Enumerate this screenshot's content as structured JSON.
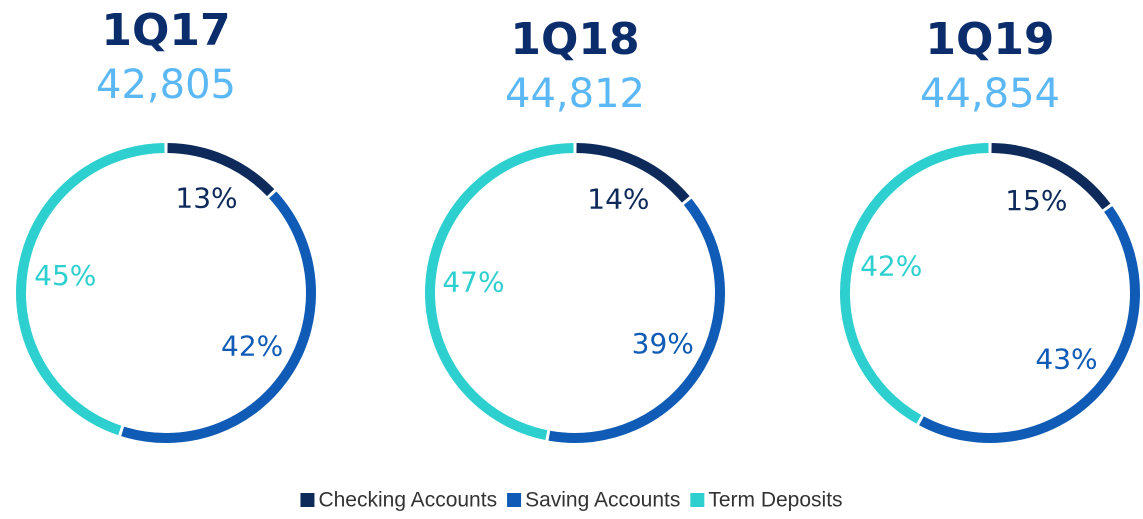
{
  "legend": {
    "labels": [
      "Checking Accounts",
      "Saving Accounts",
      "Term Deposits"
    ],
    "colors": [
      "#0d2a5a",
      "#0f5bb5",
      "#2ecfcf"
    ]
  },
  "chart_data": [
    {
      "type": "pie",
      "donut": true,
      "title": "1Q17",
      "subtitle": "42,805",
      "values": [
        13,
        42,
        45
      ],
      "value_labels": [
        "13%",
        "42%",
        "45%"
      ],
      "label_colors": [
        "#0d2a5a",
        "#0f5bb5",
        "#2ecfcf"
      ]
    },
    {
      "type": "pie",
      "donut": true,
      "title": "1Q18",
      "subtitle": "44,812",
      "values": [
        14,
        39,
        47
      ],
      "value_labels": [
        "14%",
        "39%",
        "47%"
      ],
      "label_colors": [
        "#0d2a5a",
        "#0f5bb5",
        "#2ecfcf"
      ]
    },
    {
      "type": "pie",
      "donut": true,
      "title": "1Q19",
      "subtitle": "44,854",
      "values": [
        15,
        43,
        42
      ],
      "value_labels": [
        "15%",
        "43%",
        "42%"
      ],
      "label_colors": [
        "#0d2a5a",
        "#0f5bb5",
        "#2ecfcf"
      ]
    }
  ]
}
